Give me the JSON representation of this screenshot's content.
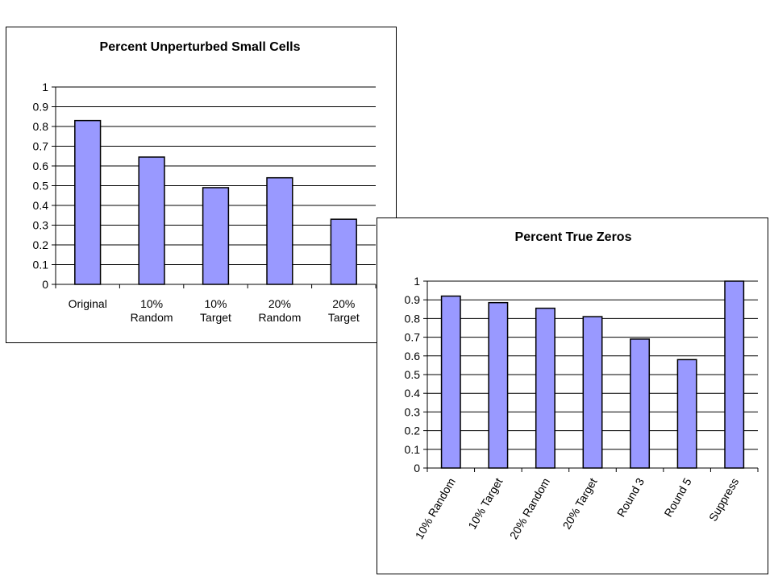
{
  "colors": {
    "bar_fill": "#9999FF",
    "bar_stroke": "#000000",
    "grid": "#000000",
    "background": "#FFFFFF"
  },
  "chart_data": [
    {
      "type": "bar",
      "title": "Percent Unperturbed Small Cells",
      "categories": [
        [
          "Original"
        ],
        [
          "10%",
          "Random"
        ],
        [
          "10%",
          "Target"
        ],
        [
          "20%",
          "Random"
        ],
        [
          "20%",
          "Target"
        ]
      ],
      "values": [
        0.83,
        0.645,
        0.49,
        0.54,
        0.33
      ],
      "ylim": [
        0,
        1
      ],
      "yticks": [
        "0",
        "0.1",
        "0.2",
        "0.3",
        "0.4",
        "0.5",
        "0.6",
        "0.7",
        "0.8",
        "0.9",
        "1"
      ],
      "grid": true,
      "legend": "none"
    },
    {
      "type": "bar",
      "title": "Percent True Zeros",
      "categories": [
        "10% Random",
        "10% Target",
        "20% Random",
        "20% Target",
        "Round 3",
        "Round 5",
        "Suppress"
      ],
      "values": [
        0.92,
        0.885,
        0.855,
        0.81,
        0.69,
        0.58,
        1.0
      ],
      "ylim": [
        0,
        1
      ],
      "yticks": [
        "0",
        "0.1",
        "0.2",
        "0.3",
        "0.4",
        "0.5",
        "0.6",
        "0.7",
        "0.8",
        "0.9",
        "1"
      ],
      "grid": true,
      "legend": "none"
    }
  ]
}
